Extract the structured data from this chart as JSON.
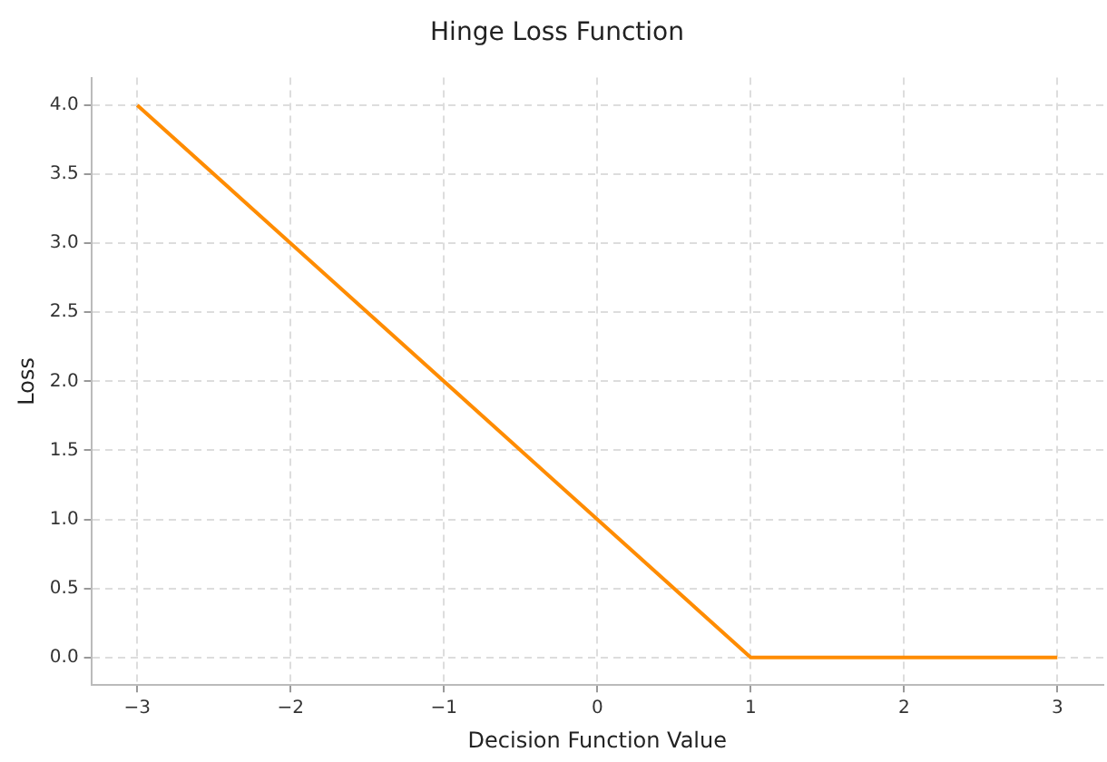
{
  "chart_data": {
    "type": "line",
    "title": "Hinge Loss Function",
    "xlabel": "Decision Function Value",
    "ylabel": "Loss",
    "x": [
      -3,
      1,
      3
    ],
    "series": [
      {
        "color": "#ff8c00",
        "values": [
          4,
          0,
          0
        ]
      }
    ],
    "xlim": [
      -3.3,
      3.3
    ],
    "ylim": [
      -0.2,
      4.2
    ],
    "xticks": [
      {
        "value": -3,
        "label": "−3"
      },
      {
        "value": -2,
        "label": "−2"
      },
      {
        "value": -1,
        "label": "−1"
      },
      0,
      1,
      2,
      3
    ],
    "yticks": [
      {
        "value": 0,
        "label": "0.0"
      },
      {
        "value": 0.5,
        "label": "0.5"
      },
      {
        "value": 1,
        "label": "1.0"
      },
      {
        "value": 1.5,
        "label": "1.5"
      },
      {
        "value": 2,
        "label": "2.0"
      },
      {
        "value": 2.5,
        "label": "2.5"
      },
      {
        "value": 3,
        "label": "3.0"
      },
      {
        "value": 3.5,
        "label": "3.5"
      },
      {
        "value": 4,
        "label": "4.0"
      }
    ],
    "grid": true,
    "legend": false,
    "marker": "none",
    "line_style": "solid"
  }
}
